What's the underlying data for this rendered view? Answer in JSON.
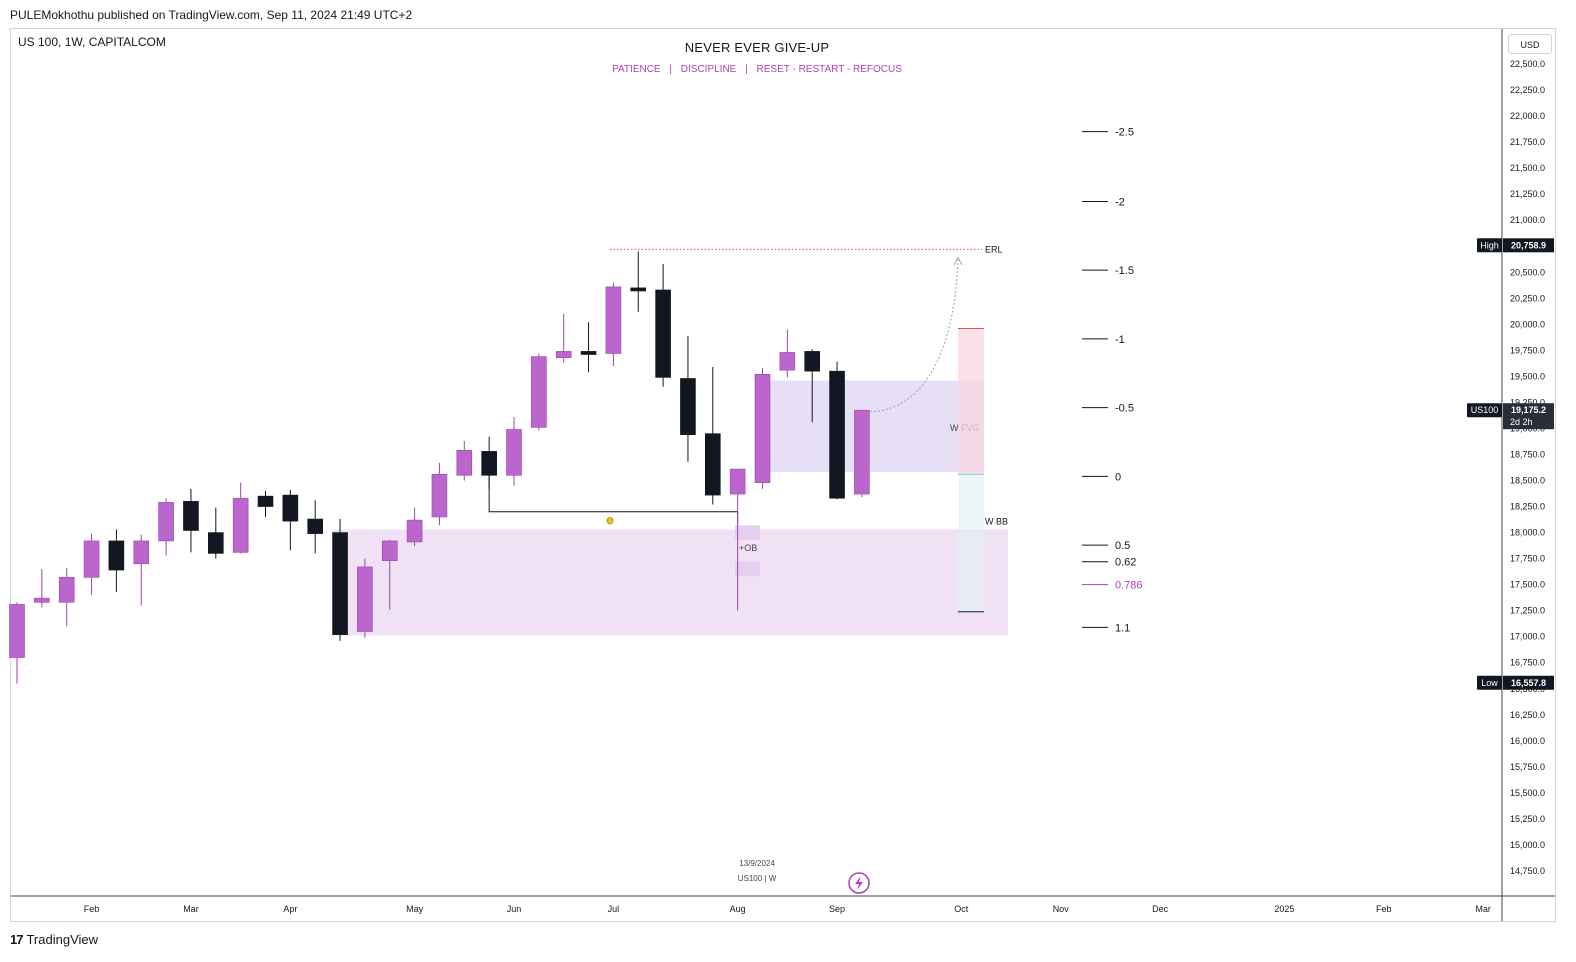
{
  "header": {
    "published": "PULEMokhothu published on TradingView.com, Sep 11, 2024 21:49 UTC+2",
    "symbol": "US 100, 1W, CAPITALCOM",
    "title": "NEVER EVER GIVE-UP",
    "subtitle": [
      "PATIENCE",
      "|",
      "DISCIPLINE",
      "|",
      "RESET - RESTART - REFOCUS"
    ],
    "currency": "USD"
  },
  "watermark": {
    "date": "13/9/2024",
    "symbol": "US100 | W"
  },
  "footer": {
    "brand": "TradingView"
  },
  "colors": {
    "bull": "#bb66cc",
    "bear": "#131722",
    "accent": "#b040b8",
    "zone": "#eedcf2",
    "erl": "#e05060"
  },
  "chart_data": {
    "type": "candlestick",
    "title": "NEVER EVER GIVE-UP",
    "timeframe": "1W",
    "ylim": [
      14600,
      22750
    ],
    "yticks": [
      14750,
      15000,
      15250,
      15500,
      15750,
      16000,
      16250,
      16500,
      16750,
      17000,
      17250,
      17500,
      17750,
      18000,
      18250,
      18500,
      18750,
      19000,
      19250,
      19500,
      19750,
      20000,
      20250,
      20500,
      20750,
      21000,
      21250,
      21500,
      21750,
      22000,
      22250,
      22500
    ],
    "ytick_labels": [
      "14,750.0",
      "15,000.0",
      "15,250.0",
      "15,500.0",
      "15,750.0",
      "16,000.0",
      "16,250.0",
      "16,500.0",
      "16,750.0",
      "17,000.0",
      "17,250.0",
      "17,500.0",
      "17,750.0",
      "18,000.0",
      "18,250.0",
      "18,500.0",
      "18,750.0",
      "19,000.0",
      "19,250.0",
      "19,500.0",
      "19,750.0",
      "20,000.0",
      "20,250.0",
      "20,500.0",
      "20,750.0",
      "21,000.0",
      "21,250.0",
      "21,500.0",
      "21,750.0",
      "22,000.0",
      "22,250.0",
      "22,500.0"
    ],
    "xticks": [
      {
        "label": "Feb",
        "i": 3
      },
      {
        "label": "Mar",
        "i": 7
      },
      {
        "label": "Apr",
        "i": 11
      },
      {
        "label": "May",
        "i": 16
      },
      {
        "label": "Jun",
        "i": 20
      },
      {
        "label": "Jul",
        "i": 24
      },
      {
        "label": "Aug",
        "i": 29
      },
      {
        "label": "Sep",
        "i": 33
      },
      {
        "label": "Oct",
        "i": 38
      },
      {
        "label": "Nov",
        "i": 42
      },
      {
        "label": "Dec",
        "i": 46
      },
      {
        "label": "2025",
        "i": 51
      },
      {
        "label": "Feb",
        "i": 55
      },
      {
        "label": "Mar",
        "i": 59
      }
    ],
    "candles": [
      {
        "o": 16800,
        "h": 17330,
        "l": 16550,
        "c": 17310
      },
      {
        "o": 17330,
        "h": 17650,
        "l": 17280,
        "c": 17370
      },
      {
        "o": 17330,
        "h": 17660,
        "l": 17100,
        "c": 17570
      },
      {
        "o": 17570,
        "h": 17990,
        "l": 17400,
        "c": 17920
      },
      {
        "o": 17920,
        "h": 18030,
        "l": 17430,
        "c": 17640
      },
      {
        "o": 17700,
        "h": 17980,
        "l": 17300,
        "c": 17920
      },
      {
        "o": 17920,
        "h": 18330,
        "l": 17780,
        "c": 18290
      },
      {
        "o": 18300,
        "h": 18420,
        "l": 17810,
        "c": 18020
      },
      {
        "o": 18000,
        "h": 18240,
        "l": 17750,
        "c": 17800
      },
      {
        "o": 17810,
        "h": 18480,
        "l": 17800,
        "c": 18330
      },
      {
        "o": 18350,
        "h": 18400,
        "l": 18150,
        "c": 18250
      },
      {
        "o": 18360,
        "h": 18410,
        "l": 17830,
        "c": 18110
      },
      {
        "o": 18130,
        "h": 18310,
        "l": 17800,
        "c": 17990
      },
      {
        "o": 18000,
        "h": 18130,
        "l": 16960,
        "c": 17020
      },
      {
        "o": 17050,
        "h": 17750,
        "l": 16990,
        "c": 17670
      },
      {
        "o": 17730,
        "h": 17930,
        "l": 17260,
        "c": 17920
      },
      {
        "o": 17910,
        "h": 18240,
        "l": 17870,
        "c": 18120
      },
      {
        "o": 18150,
        "h": 18670,
        "l": 18070,
        "c": 18560
      },
      {
        "o": 18550,
        "h": 18880,
        "l": 18500,
        "c": 18790
      },
      {
        "o": 18780,
        "h": 18920,
        "l": 18420,
        "c": 18550
      },
      {
        "o": 18550,
        "h": 19110,
        "l": 18450,
        "c": 18990
      },
      {
        "o": 19010,
        "h": 19720,
        "l": 18980,
        "c": 19690
      },
      {
        "o": 19680,
        "h": 20100,
        "l": 19630,
        "c": 19740
      },
      {
        "o": 19740,
        "h": 20020,
        "l": 19540,
        "c": 19710
      },
      {
        "o": 19720,
        "h": 20400,
        "l": 19600,
        "c": 20360
      },
      {
        "o": 20350,
        "h": 20700,
        "l": 20120,
        "c": 20320
      },
      {
        "o": 20330,
        "h": 20580,
        "l": 19400,
        "c": 19490
      },
      {
        "o": 19480,
        "h": 19890,
        "l": 18680,
        "c": 18940
      },
      {
        "o": 18950,
        "h": 19590,
        "l": 18270,
        "c": 18360
      },
      {
        "o": 18370,
        "h": 18600,
        "l": 17250,
        "c": 18610
      },
      {
        "o": 18480,
        "h": 19580,
        "l": 18420,
        "c": 19520
      },
      {
        "o": 19560,
        "h": 19950,
        "l": 19490,
        "c": 19730
      },
      {
        "o": 19740,
        "h": 19760,
        "l": 19060,
        "c": 19550
      },
      {
        "o": 19550,
        "h": 19640,
        "l": 18320,
        "c": 18330
      },
      {
        "o": 18370,
        "h": 19180,
        "l": 18340,
        "c": 19175
      }
    ],
    "fib_levels": [
      {
        "label": "-2.5",
        "value": 21850
      },
      {
        "label": "-2",
        "value": 21180
      },
      {
        "label": "-1.5",
        "value": 20520
      },
      {
        "label": "-1",
        "value": 19860
      },
      {
        "label": "-0.5",
        "value": 19200
      },
      {
        "label": "0",
        "value": 18540
      },
      {
        "label": "0.5",
        "value": 17880
      },
      {
        "label": "0.62",
        "value": 17720
      },
      {
        "label": "0.786",
        "value": 17500
      },
      {
        "label": "1.1",
        "value": 17090
      }
    ],
    "annotations": {
      "erl": {
        "label": "ERL",
        "value": 20720
      },
      "wfvg": {
        "label": "W FVG",
        "top": 19460,
        "bottom": 18580
      },
      "wbb": {
        "label": "W BB",
        "top": 18030,
        "bottom": 17010
      },
      "ob": {
        "label": "+OB"
      },
      "sweep_line_value": 18200
    },
    "price_labels": {
      "high": {
        "tag": "High",
        "value": "20,758.9",
        "price": 20758.9
      },
      "current": {
        "tag": "US100",
        "value": "19,175.2",
        "countdown": "2d 2h",
        "price": 19175.2
      },
      "low": {
        "tag": "Low",
        "value": "16,557.8",
        "price": 16557.8
      }
    }
  }
}
